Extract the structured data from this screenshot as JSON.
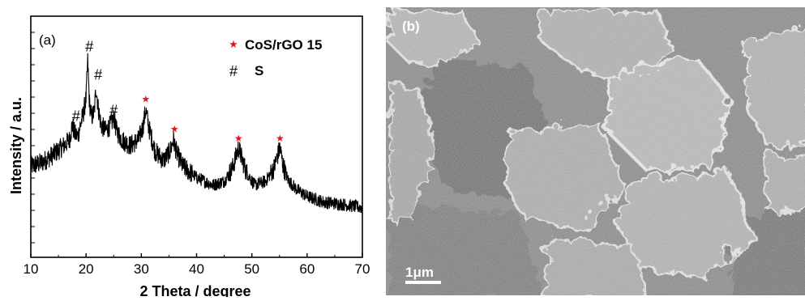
{
  "panel_a": {
    "label": "(a)",
    "legend": {
      "items": [
        {
          "marker": "★",
          "text": "CoS/rGO 15",
          "color": "#e8121c"
        },
        {
          "marker": "#",
          "text": "S",
          "color": "#000000"
        }
      ]
    }
  },
  "panel_b": {
    "label": "(b)",
    "scalebar_text": "1μm"
  },
  "chart_data": {
    "type": "line",
    "xlabel": "2 Theta / degree",
    "ylabel": "Intensity / a.u.",
    "xlim": [
      10,
      70
    ],
    "ylim": [
      0,
      100
    ],
    "xticks": [
      10,
      20,
      30,
      40,
      50,
      60,
      70
    ],
    "y_tick_labels_shown": false,
    "grid": false,
    "legend_position": "top-right",
    "series": [
      {
        "name": "CoS/rGO 15",
        "color": "#000000",
        "x": [
          10,
          12,
          14,
          16,
          17,
          17.5,
          18,
          18.5,
          19,
          19.5,
          20,
          20.3,
          20.6,
          21,
          21.5,
          21.8,
          22.2,
          22.7,
          23.5,
          24.5,
          25,
          25.5,
          26.5,
          28,
          29.5,
          30.3,
          30.8,
          31.4,
          32.5,
          34,
          35.2,
          35.8,
          36.4,
          37.5,
          40,
          43,
          45,
          46.5,
          47.2,
          47.6,
          48.2,
          49,
          50.5,
          52.5,
          54,
          54.7,
          55.1,
          55.6,
          56.5,
          58,
          60,
          63,
          66,
          68,
          70
        ],
        "y": [
          44,
          46,
          50,
          55,
          58,
          66,
          61,
          60,
          66,
          72,
          80,
          100,
          78,
          70,
          73,
          86,
          75,
          66,
          63,
          66,
          70,
          63,
          58,
          55,
          58,
          65,
          74,
          64,
          52,
          47,
          52,
          58,
          51,
          44,
          38,
          34,
          36,
          43,
          50,
          54,
          48,
          41,
          34,
          36,
          43,
          50,
          54,
          45,
          37,
          32,
          28,
          25,
          24,
          23,
          22
        ]
      }
    ],
    "annotations": [
      {
        "text": "#",
        "x": 18.2,
        "y": 68
      },
      {
        "text": "#",
        "x": 20.6,
        "y": 105
      },
      {
        "text": "#",
        "x": 22.2,
        "y": 90
      },
      {
        "text": "#",
        "x": 25.0,
        "y": 71
      },
      {
        "text": "★",
        "x": 30.8,
        "y": 78
      },
      {
        "text": "★",
        "x": 36.0,
        "y": 62
      },
      {
        "text": "★",
        "x": 47.6,
        "y": 57
      },
      {
        "text": "★",
        "x": 55.1,
        "y": 57
      }
    ]
  }
}
